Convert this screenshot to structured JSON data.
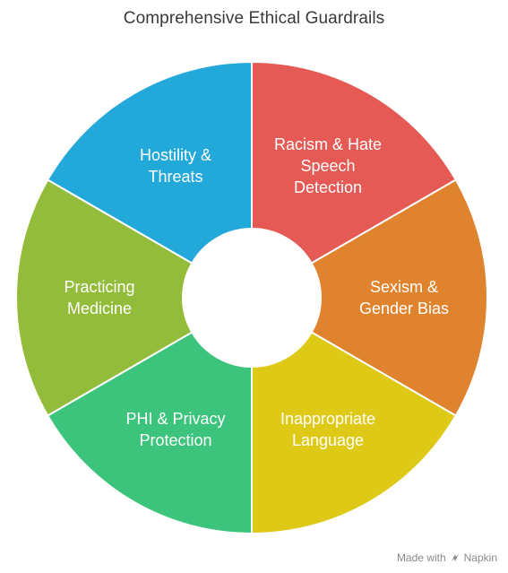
{
  "title": "Comprehensive Ethical Guardrails",
  "segments": [
    {
      "lines": [
        "Racism & Hate",
        "Speech",
        "Detection"
      ],
      "color": "#e55a54"
    },
    {
      "lines": [
        "Sexism &",
        "Gender Bias"
      ],
      "color": "#e0832f"
    },
    {
      "lines": [
        "Inappropriate",
        "Language"
      ],
      "color": "#dfc917"
    },
    {
      "lines": [
        "PHI & Privacy",
        "Protection"
      ],
      "color": "#3cc47c"
    },
    {
      "lines": [
        "Practicing",
        "Medicine"
      ],
      "color": "#93bc3b"
    },
    {
      "lines": [
        "Hostility &",
        "Threats"
      ],
      "color": "#22a8d9"
    }
  ],
  "footer": {
    "made_with": "Made with",
    "brand": "Napkin",
    "icon": "napkin-logo-icon"
  }
}
